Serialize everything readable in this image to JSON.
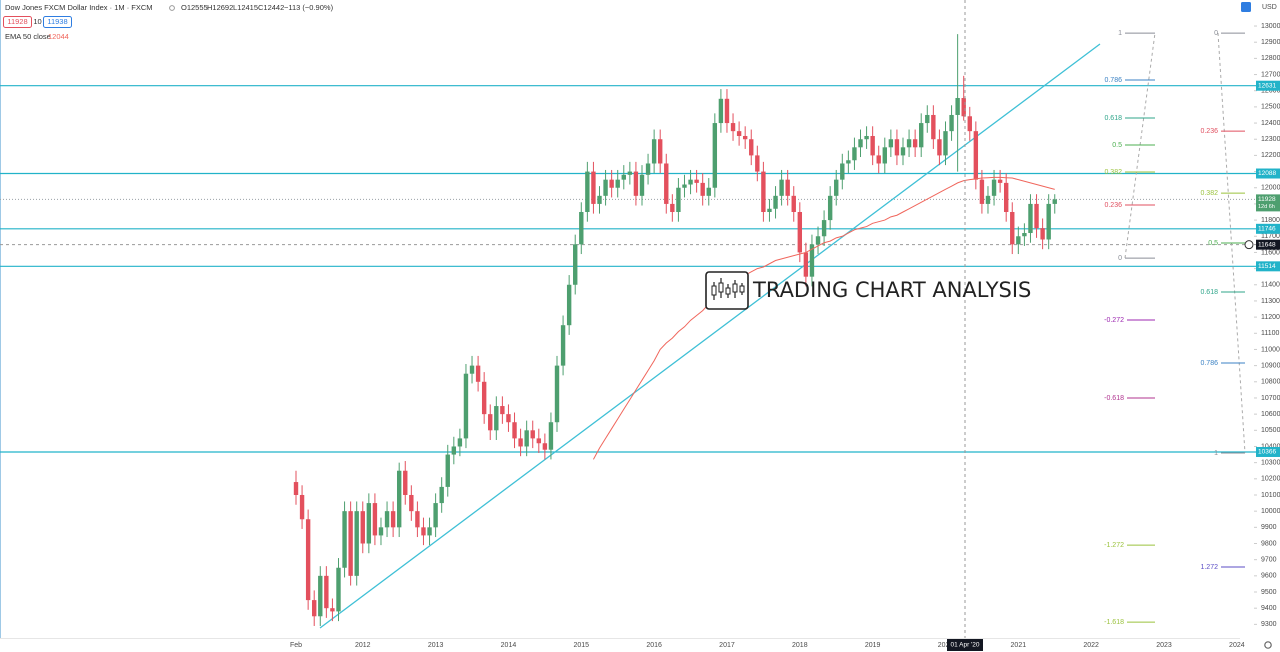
{
  "header": {
    "symbol": "Dow Jones FXCM Dollar Index · 1M · FXCM",
    "ohlc": [
      "O12555",
      "H12692",
      "L12415",
      "C12442"
    ],
    "change": "−113 (−0.90%)",
    "sell": "11928",
    "spread": "10",
    "buy": "11938",
    "currency": "USD"
  },
  "watermark": "TRADING CHART ANALYSIS",
  "chart_data": {
    "type": "candlestick",
    "categories": [
      "Feb",
      null,
      null,
      null,
      null,
      null,
      null,
      null,
      null,
      null,
      null,
      "2012",
      null,
      null,
      null,
      null,
      null,
      null,
      null,
      null,
      null,
      null,
      null,
      "2013",
      null,
      null,
      null,
      null,
      null,
      null,
      null,
      null,
      null,
      null,
      null,
      "2014",
      null,
      null,
      null,
      null,
      null,
      null,
      null,
      null,
      null,
      null,
      null,
      "2015",
      null,
      null,
      null,
      null,
      null,
      null,
      null,
      null,
      null,
      null,
      null,
      "2016",
      null,
      null,
      null,
      null,
      null,
      null,
      null,
      null,
      null,
      null,
      null,
      "2017",
      null,
      null,
      null,
      null,
      null,
      null,
      null,
      null,
      null,
      null,
      null,
      "2018",
      null,
      null,
      null,
      null,
      null,
      null,
      null,
      null,
      null,
      null,
      null,
      "2019",
      null,
      null,
      null,
      null,
      null,
      null,
      null,
      null,
      null,
      null,
      null,
      "2020",
      null,
      null,
      null,
      null,
      null,
      null,
      null,
      null,
      null,
      null,
      null,
      "2021",
      null,
      null,
      null,
      null,
      null,
      null,
      null,
      null,
      null,
      null,
      null,
      "2022",
      null,
      null,
      null,
      null,
      null,
      null,
      null,
      null,
      null,
      null,
      null,
      "2023",
      null,
      null,
      null,
      null,
      null,
      null,
      null,
      null,
      null,
      null,
      null,
      "2024"
    ],
    "open": [
      10180,
      10100,
      9950,
      9450,
      9350,
      9600,
      9400,
      9380,
      9650,
      10000,
      9600,
      10000,
      9800,
      10050,
      9850,
      9900,
      10000,
      9900,
      10250,
      10100,
      10000,
      9900,
      9850,
      9900,
      10050,
      10150,
      10350,
      10400,
      10450,
      10850,
      10900,
      10800,
      10600,
      10500,
      10650,
      10600,
      10550,
      10450,
      10400,
      10500,
      10450,
      10420,
      10380,
      10550,
      10900,
      11150,
      11400,
      11650,
      11850,
      12100,
      11900,
      11950,
      12050,
      12000,
      12050,
      12080,
      12100,
      11950,
      12080,
      12150,
      12300,
      12150,
      11900,
      11850,
      12000,
      12020,
      12050,
      12030,
      11950,
      12000,
      12400,
      12550,
      12400,
      12350,
      12320,
      12300,
      12200,
      12100,
      11850,
      11870,
      11950,
      12050,
      11950,
      11850,
      11600,
      11450,
      11650,
      11700,
      11800,
      11950,
      12050,
      12150,
      12170,
      12250,
      12300,
      12320,
      12200,
      12150,
      12250,
      12300,
      12200,
      12250,
      12300,
      12250,
      12400,
      12450,
      12300,
      12200,
      12350,
      12450,
      12555,
      12442,
      12350,
      12050,
      11900,
      11950,
      12050,
      12030,
      11850,
      11650,
      11700,
      11720,
      11900,
      11750,
      11680,
      11900,
      null,
      null,
      null,
      null,
      null,
      null,
      null,
      null,
      null,
      null,
      null,
      null,
      null,
      null,
      null,
      null,
      null,
      null,
      null,
      null,
      null,
      null,
      null,
      null,
      null,
      null,
      null,
      null,
      null,
      null
    ],
    "high": [
      10250,
      10160,
      10010,
      9510,
      9660,
      9660,
      9460,
      9710,
      10060,
      10060,
      10060,
      10060,
      10110,
      10110,
      9960,
      10060,
      10060,
      10300,
      10310,
      10160,
      10060,
      9960,
      9960,
      10110,
      10210,
      10410,
      10460,
      10510,
      10910,
      10960,
      10960,
      10860,
      10660,
      10710,
      10710,
      10660,
      10610,
      10510,
      10560,
      10560,
      10510,
      10480,
      10610,
      10960,
      11210,
      11460,
      11710,
      11910,
      12160,
      12160,
      12010,
      12110,
      12110,
      12110,
      12140,
      12160,
      12160,
      12140,
      12210,
      12360,
      12360,
      12210,
      11960,
      12060,
      12080,
      12110,
      12110,
      12090,
      12060,
      12460,
      12610,
      12610,
      12460,
      12410,
      12380,
      12360,
      12260,
      12160,
      11930,
      12010,
      12110,
      12110,
      12010,
      11910,
      11660,
      11710,
      11760,
      11860,
      12010,
      12110,
      12210,
      12230,
      12310,
      12360,
      12380,
      12380,
      12260,
      12310,
      12360,
      12360,
      12310,
      12360,
      12360,
      12460,
      12510,
      12510,
      12360,
      12410,
      12510,
      12950,
      12692,
      12500,
      12410,
      12110,
      12010,
      12110,
      12110,
      12090,
      11910,
      11760,
      11780,
      11960,
      11960,
      11810,
      11960,
      11960,
      null,
      null,
      null,
      null,
      null,
      null,
      null,
      null,
      null,
      null,
      null,
      null,
      null,
      null,
      null,
      null,
      null,
      null,
      null,
      null,
      null,
      null,
      null,
      null,
      null,
      null,
      null,
      null,
      null,
      null
    ],
    "low": [
      10040,
      9890,
      9390,
      9290,
      9290,
      9340,
      9320,
      9320,
      9590,
      9540,
      9540,
      9740,
      9740,
      9790,
      9790,
      9840,
      9840,
      9840,
      10040,
      9940,
      9840,
      9790,
      9790,
      9840,
      9990,
      10090,
      10290,
      10340,
      10390,
      10790,
      10740,
      10540,
      10440,
      10440,
      10540,
      10490,
      10390,
      10340,
      10340,
      10390,
      10360,
      10320,
      10320,
      10490,
      10840,
      11090,
      11340,
      11590,
      11790,
      11840,
      11840,
      11890,
      11940,
      11940,
      11990,
      12020,
      11890,
      11890,
      12020,
      12090,
      12090,
      11840,
      11790,
      11790,
      11940,
      11960,
      11970,
      11890,
      11890,
      11940,
      12340,
      12340,
      12290,
      12260,
      12240,
      12140,
      12040,
      11790,
      11790,
      11810,
      11890,
      11890,
      11790,
      11540,
      11390,
      11390,
      11590,
      11640,
      11740,
      11890,
      11990,
      12090,
      12110,
      12190,
      12240,
      12140,
      12090,
      12090,
      12190,
      12140,
      12140,
      12190,
      12190,
      12190,
      12340,
      12240,
      12140,
      12140,
      12290,
      12100,
      12415,
      12290,
      11990,
      11840,
      11840,
      11890,
      11970,
      11790,
      11590,
      11590,
      11640,
      11660,
      11690,
      11620,
      11620,
      11840,
      null,
      null,
      null,
      null,
      null,
      null,
      null,
      null,
      null,
      null,
      null,
      null,
      null,
      null,
      null,
      null,
      null,
      null,
      null,
      null,
      null,
      null,
      null,
      null,
      null,
      null,
      null,
      null,
      null,
      null
    ],
    "close": [
      10100,
      9950,
      9450,
      9350,
      9600,
      9400,
      9380,
      9650,
      10000,
      9600,
      10000,
      9800,
      10050,
      9850,
      9900,
      10000,
      9900,
      10250,
      10100,
      10000,
      9900,
      9850,
      9900,
      10050,
      10150,
      10350,
      10400,
      10450,
      10850,
      10900,
      10800,
      10600,
      10500,
      10650,
      10600,
      10550,
      10450,
      10400,
      10500,
      10450,
      10420,
      10380,
      10550,
      10900,
      11150,
      11400,
      11650,
      11850,
      12100,
      11900,
      11950,
      12050,
      12000,
      12050,
      12080,
      12100,
      11950,
      12080,
      12150,
      12300,
      12150,
      11900,
      11850,
      12000,
      12020,
      12050,
      12030,
      11950,
      12000,
      12400,
      12550,
      12400,
      12350,
      12320,
      12300,
      12200,
      12100,
      11850,
      11870,
      11950,
      12050,
      11950,
      11850,
      11600,
      11450,
      11650,
      11700,
      11800,
      11950,
      12050,
      12150,
      12170,
      12250,
      12300,
      12320,
      12200,
      12150,
      12250,
      12300,
      12200,
      12250,
      12300,
      12250,
      12400,
      12450,
      12300,
      12200,
      12350,
      12450,
      12555,
      12442,
      12350,
      12050,
      11900,
      11950,
      12050,
      12030,
      11850,
      11650,
      11700,
      11720,
      11900,
      11750,
      11680,
      11900,
      11928,
      null,
      null,
      null,
      null,
      null,
      null,
      null,
      null,
      null,
      null,
      null,
      null,
      null,
      null,
      null,
      null,
      null,
      null,
      null,
      null,
      null,
      null,
      null,
      null,
      null,
      null,
      null,
      null,
      null,
      null
    ],
    "up_color": "#4e9f6f",
    "down_color": "#e3505d",
    "ema": {
      "name": "EMA 50 close",
      "color": "#f0665c",
      "values": [
        null,
        null,
        null,
        null,
        null,
        null,
        null,
        null,
        null,
        null,
        null,
        null,
        null,
        null,
        null,
        null,
        null,
        null,
        null,
        null,
        null,
        null,
        null,
        null,
        null,
        null,
        null,
        null,
        null,
        null,
        null,
        null,
        null,
        null,
        null,
        null,
        null,
        null,
        null,
        null,
        null,
        null,
        null,
        null,
        null,
        null,
        null,
        null,
        null,
        10320,
        10390,
        10450,
        10510,
        10570,
        10630,
        10690,
        10750,
        10810,
        10870,
        10930,
        11000,
        11040,
        11070,
        11110,
        11140,
        11180,
        11210,
        11240,
        11280,
        11310,
        11350,
        11390,
        11420,
        11440,
        11460,
        11480,
        11500,
        11510,
        11530,
        11550,
        11560,
        11570,
        11580,
        11590,
        11600,
        11620,
        11640,
        11660,
        11670,
        11690,
        11700,
        11720,
        11740,
        11750,
        11760,
        11780,
        11790,
        11800,
        11820,
        11830,
        11850,
        11870,
        11890,
        11910,
        11930,
        11950,
        11970,
        11990,
        12010,
        12030,
        12044,
        12050,
        12055,
        12060,
        12062,
        12064,
        12064,
        12062,
        12060,
        12050,
        12040,
        12030,
        12020,
        12010,
        12000,
        11990,
        null,
        null,
        null,
        null,
        null,
        null,
        null,
        null,
        null,
        null,
        null,
        null,
        null,
        null,
        null,
        null,
        null,
        null,
        null,
        null,
        null,
        null,
        null,
        null,
        null,
        null,
        null,
        null,
        null,
        null
      ]
    },
    "ylim": [
      9228,
      13161
    ],
    "yticks": [
      9300,
      9400,
      9500,
      9600,
      9700,
      9800,
      9900,
      10000,
      10100,
      10200,
      10300,
      10400,
      10500,
      10600,
      10700,
      10800,
      10900,
      11000,
      11100,
      11200,
      11300,
      11400,
      11500,
      11600,
      11700,
      11800,
      11900,
      12000,
      12100,
      12200,
      12300,
      12400,
      12500,
      12600,
      12700,
      12800,
      12900,
      13000
    ],
    "levels": [
      12631,
      12088,
      11746,
      11514,
      10366
    ],
    "level_color": "#22b3c9",
    "countdown": "12d 6h",
    "crosshair": {
      "x_label": "01 Apr '20",
      "price": 11648
    },
    "fib_groups": [
      {
        "levels": [
          {
            "label": "1",
            "price": 12956,
            "color": "#8a8d96"
          },
          {
            "label": "0.786",
            "price": 12666,
            "color": "#3b82c4"
          },
          {
            "label": "0.618",
            "price": 12431,
            "color": "#2fa58a"
          },
          {
            "label": "0.5",
            "price": 12264,
            "color": "#4caf50"
          },
          {
            "label": "0.382",
            "price": 12097,
            "color": "#9ac23c"
          },
          {
            "label": "0.236",
            "price": 11893,
            "color": "#e04f5f"
          },
          {
            "label": "0",
            "price": 11565,
            "color": "#8a8d96"
          }
        ]
      },
      {
        "levels": [
          {
            "label": "0",
            "price": 12956,
            "color": "#8a8d96"
          },
          {
            "label": "0.236",
            "price": 12350,
            "color": "#e04f5f"
          },
          {
            "label": "0.382",
            "price": 11967,
            "color": "#9ac23c"
          },
          {
            "label": "0.5",
            "price": 11658,
            "color": "#4caf50"
          },
          {
            "label": "0.618",
            "price": 11355,
            "color": "#2fa58a"
          },
          {
            "label": "0.786",
            "price": 10916,
            "color": "#3b82c4"
          },
          {
            "label": "1",
            "price": 10360,
            "color": "#8a8d96"
          },
          {
            "label": "1.272",
            "price": 9655,
            "color": "#5b4ec6"
          }
        ]
      },
      {
        "levels": [
          {
            "label": "-0.272",
            "price": 11182,
            "color": "#9c27b0"
          },
          {
            "label": "-0.618",
            "price": 10700,
            "color": "#b0338f"
          },
          {
            "label": "-1.272",
            "price": 9790,
            "color": "#9ac23c"
          },
          {
            "label": "-1.618",
            "price": 9314,
            "color": "#9ac23c"
          }
        ]
      }
    ]
  }
}
